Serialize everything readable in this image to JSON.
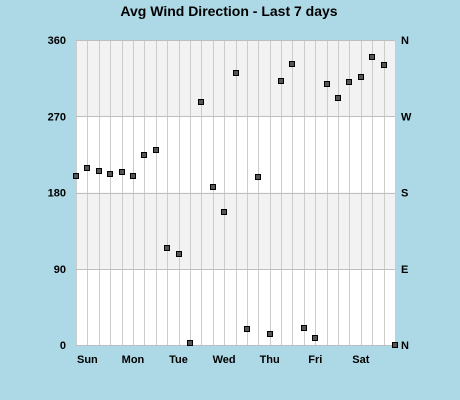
{
  "chart_data": {
    "type": "scatter",
    "title": "Avg Wind Direction - Last 7 days",
    "xlabel": "",
    "ylabel": "",
    "ylim": [
      0,
      360
    ],
    "xlim": [
      0,
      7
    ],
    "y_ticks": [
      0,
      90,
      180,
      270,
      360
    ],
    "y_tick_labels": [
      "0",
      "90",
      "180",
      "270",
      "360"
    ],
    "right_tick_labels": [
      "N",
      "E",
      "S",
      "W",
      "N"
    ],
    "x_tick_labels": [
      "Sun",
      "Mon",
      "Tue",
      "Wed",
      "Thu",
      "Fri",
      "Sat"
    ],
    "bands": [
      {
        "from": 90,
        "to": 180,
        "color": "#f2f2f2"
      },
      {
        "from": 270,
        "to": 360,
        "color": "#f2f2f2"
      }
    ],
    "grid": true,
    "legend": "none",
    "marker_color": "#555555",
    "background_color": "#add8e6",
    "series": [
      {
        "x": [
          0.0,
          0.25,
          0.5,
          0.75,
          1.0,
          1.25,
          1.5,
          1.75,
          2.0,
          2.25,
          2.5,
          2.75,
          3.0,
          3.25,
          3.5,
          3.75,
          4.0,
          4.25,
          4.5,
          4.75,
          5.0,
          5.25,
          5.5,
          5.75,
          6.0,
          6.25,
          6.5,
          6.75,
          7.0
        ],
        "y": [
          200,
          209,
          205,
          202,
          204,
          200,
          224,
          230,
          114,
          107,
          2,
          287,
          187,
          157,
          321,
          19,
          198,
          13,
          312,
          332,
          20,
          8,
          308,
          291,
          310,
          316,
          340,
          331,
          0
        ]
      }
    ]
  }
}
